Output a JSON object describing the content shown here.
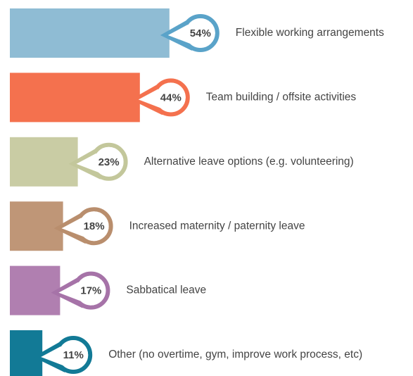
{
  "chart_data": {
    "type": "bar",
    "orientation": "horizontal",
    "categories": [
      "Flexible working arrangements",
      "Team building / offsite activities",
      "Alternative leave options (e.g. volunteering)",
      "Increased maternity / paternity leave",
      "Sabbatical leave",
      "Other (no overtime, gym, improve work process, etc)"
    ],
    "values": [
      54,
      44,
      23,
      18,
      17,
      11
    ],
    "value_labels": [
      "54%",
      "44%",
      "23%",
      "18%",
      "17%",
      "11%"
    ],
    "colors": [
      "#8fbcd4",
      "#f4714e",
      "#c9cca4",
      "#bf9677",
      "#b07fb0",
      "#127a96"
    ],
    "ring_colors": [
      "#5aa3c9",
      "#f4714e",
      "#c3c79b",
      "#b98e6d",
      "#a673a8",
      "#127a96"
    ]
  }
}
